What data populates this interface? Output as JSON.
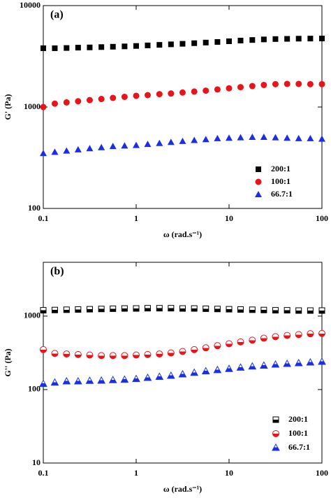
{
  "chart_data": [
    {
      "type": "scatter",
      "panel_label": "(a)",
      "ylabel": "G' (Pa)",
      "xlabel": "ω (rad.s⁻¹)",
      "log_x": true,
      "log_y": true,
      "marker_fill": "filled",
      "xlim": [
        0.1,
        100
      ],
      "xticks": [
        0.1,
        1,
        10,
        100
      ],
      "ylim": [
        100,
        10000
      ],
      "yticks": [
        100,
        1000,
        10000
      ],
      "x": [
        0.1,
        0.133,
        0.178,
        0.237,
        0.316,
        0.422,
        0.562,
        0.75,
        1,
        1.33,
        1.78,
        2.37,
        3.16,
        4.22,
        5.62,
        7.5,
        10,
        13.3,
        17.8,
        23.7,
        31.6,
        42.2,
        56.2,
        75,
        100
      ],
      "series": [
        {
          "name": "200:1",
          "color": "#000000",
          "marker": "square",
          "values": [
            3800,
            3800,
            3820,
            3850,
            3870,
            3900,
            3930,
            3960,
            4000,
            4050,
            4100,
            4150,
            4200,
            4260,
            4320,
            4380,
            4450,
            4520,
            4580,
            4640,
            4680,
            4700,
            4720,
            4730,
            4740
          ]
        },
        {
          "name": "100:1",
          "color": "#e8141a",
          "marker": "circle",
          "values": [
            1000,
            1080,
            1110,
            1140,
            1170,
            1200,
            1230,
            1260,
            1290,
            1310,
            1340,
            1360,
            1390,
            1420,
            1450,
            1490,
            1530,
            1570,
            1610,
            1650,
            1680,
            1690,
            1690,
            1680,
            1680
          ]
        },
        {
          "name": "66.7:1",
          "color": "#1a2ee6",
          "marker": "triangle",
          "values": [
            350,
            360,
            370,
            380,
            390,
            400,
            410,
            415,
            420,
            430,
            440,
            450,
            460,
            470,
            480,
            490,
            495,
            500,
            505,
            505,
            500,
            495,
            490,
            490,
            485
          ]
        }
      ]
    },
    {
      "type": "scatter",
      "panel_label": "(b)",
      "ylabel": "G'' (Pa)",
      "xlabel": "ω (rad.s⁻¹)",
      "log_x": true,
      "log_y": true,
      "marker_fill": "half",
      "xlim": [
        0.1,
        100
      ],
      "xticks": [
        0.1,
        1,
        10,
        100
      ],
      "ylim": [
        10,
        5400
      ],
      "yticks": [
        10,
        100,
        1000
      ],
      "x": [
        0.1,
        0.133,
        0.178,
        0.237,
        0.316,
        0.422,
        0.562,
        0.75,
        1,
        1.33,
        1.78,
        2.37,
        3.16,
        4.22,
        5.62,
        7.5,
        10,
        13.3,
        17.8,
        23.7,
        31.6,
        42.2,
        56.2,
        75,
        100
      ],
      "series": [
        {
          "name": "200:1",
          "color": "#000000",
          "marker": "square",
          "values": [
            1200,
            1210,
            1220,
            1230,
            1240,
            1250,
            1260,
            1270,
            1270,
            1280,
            1280,
            1280,
            1270,
            1270,
            1260,
            1250,
            1240,
            1230,
            1220,
            1210,
            1200,
            1200,
            1190,
            1190,
            1190
          ]
        },
        {
          "name": "100:1",
          "color": "#e8141a",
          "marker": "circle",
          "values": [
            350,
            310,
            305,
            300,
            295,
            290,
            290,
            290,
            295,
            300,
            305,
            315,
            330,
            350,
            370,
            395,
            420,
            445,
            470,
            500,
            525,
            545,
            560,
            575,
            580
          ]
        },
        {
          "name": "66.7:1",
          "color": "#1a2ee6",
          "marker": "triangle",
          "values": [
            120,
            125,
            130,
            130,
            132,
            133,
            135,
            137,
            140,
            145,
            150,
            155,
            162,
            170,
            178,
            185,
            192,
            200,
            207,
            213,
            220,
            225,
            230,
            235,
            240
          ]
        }
      ]
    }
  ]
}
